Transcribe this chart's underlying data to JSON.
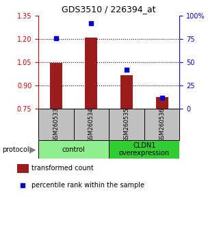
{
  "title": "GDS3510 / 226394_at",
  "samples": [
    "GSM260533",
    "GSM260534",
    "GSM260535",
    "GSM260536"
  ],
  "red_bars": [
    1.047,
    1.21,
    0.965,
    0.825
  ],
  "blue_squares": [
    76,
    92,
    42,
    12
  ],
  "ylim_left": [
    0.75,
    1.35
  ],
  "ylim_right": [
    0,
    100
  ],
  "yticks_left": [
    0.75,
    0.9,
    1.05,
    1.2,
    1.35
  ],
  "yticks_right": [
    0,
    25,
    50,
    75,
    100
  ],
  "ytick_labels_right": [
    "0",
    "25",
    "50",
    "75",
    "100%"
  ],
  "bar_color": "#9B1C1C",
  "square_color": "#0000CC",
  "groups": [
    {
      "label": "control",
      "samples": [
        0,
        1
      ],
      "color": "#90EE90"
    },
    {
      "label": "CLDN1\noverexpression",
      "samples": [
        2,
        3
      ],
      "color": "#32CD32"
    }
  ],
  "protocol_label": "protocol",
  "legend_bar_label": "transformed count",
  "legend_square_label": "percentile rank within the sample",
  "bar_width": 0.35,
  "left_axis_color": "#CC0000",
  "right_axis_color": "#0000CC",
  "label_box_color": "#C0C0C0",
  "dotted_lines": [
    0.9,
    1.05,
    1.2
  ]
}
